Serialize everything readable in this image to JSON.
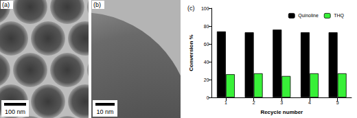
{
  "micrographs": [
    {
      "label": "(a)",
      "scale_bar": "100 nm"
    },
    {
      "label": "(b)",
      "scale_bar": "10 nm"
    }
  ],
  "chart_data": {
    "type": "bar",
    "panel_label": "(c)",
    "x_label": "Recycle number",
    "y_label": "Conversion %",
    "categories": [
      "1",
      "2",
      "3",
      "4",
      "5"
    ],
    "series": [
      {
        "name": "Quinoline",
        "color": "#000000",
        "values": [
          74,
          73,
          76,
          73,
          73
        ]
      },
      {
        "name": "THQ",
        "color": "#38f038",
        "values": [
          26,
          27,
          24,
          27,
          27
        ]
      }
    ],
    "ylim": [
      0,
      100
    ],
    "yticks": [
      0,
      20,
      40,
      60,
      80,
      100
    ],
    "grid": false,
    "legend": "top-right"
  }
}
